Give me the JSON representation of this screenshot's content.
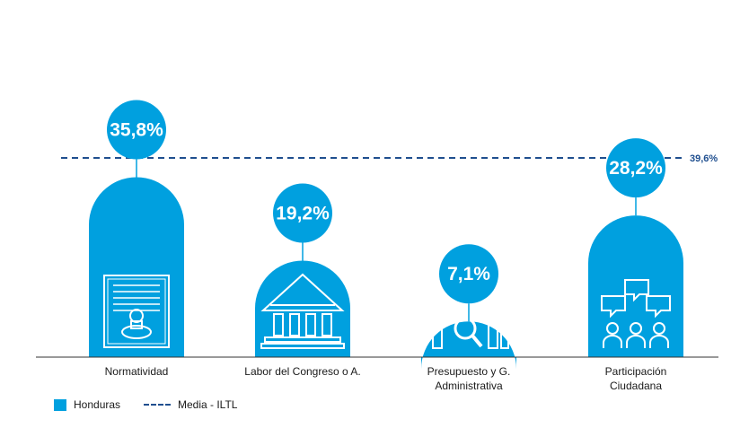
{
  "chart_data": {
    "type": "bar",
    "categories": [
      [
        "Normatividad"
      ],
      [
        "Labor del Congreso o A."
      ],
      [
        "Presupuesto y G.",
        "Administrativa"
      ],
      [
        "Participación",
        "Ciudadana"
      ]
    ],
    "series": [
      {
        "name": "Honduras",
        "values": [
          35.8,
          19.2,
          7.1,
          28.2
        ],
        "labels": [
          "35,8%",
          "19,2%",
          "7,1%",
          "28,2%"
        ]
      }
    ],
    "mean": {
      "name": "Media - ILTL",
      "value": 39.6,
      "label": "39,6%"
    },
    "icons": [
      "document-seal-icon",
      "congress-building-icon",
      "budget-chart-icon",
      "citizen-participation-icon"
    ],
    "ylim": [
      0,
      60
    ],
    "grid": false,
    "legend_position": "bottom-left",
    "colors": {
      "bar": "#00a0df",
      "mean_line": "#1f4f8f",
      "icon": "#ffffff"
    }
  },
  "legend": {
    "series_label": "Honduras",
    "mean_label": "Media - ILTL"
  }
}
